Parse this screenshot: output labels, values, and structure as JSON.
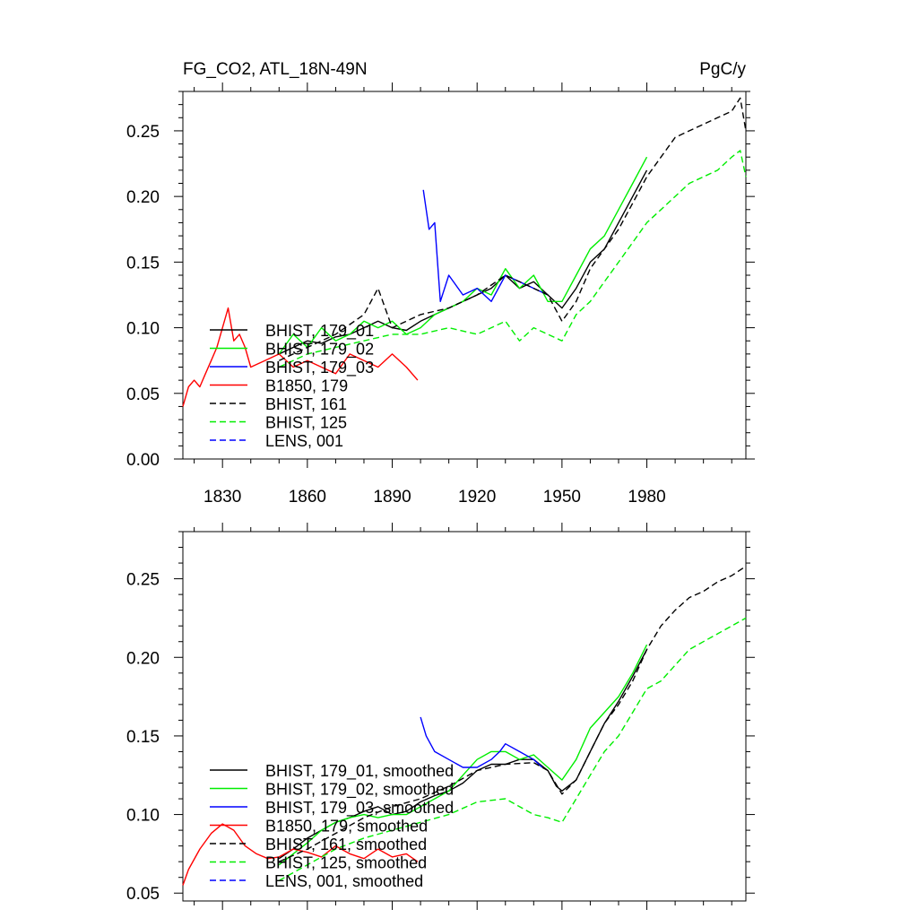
{
  "chart_data": [
    {
      "type": "line",
      "title": "FG_CO2, ATL_18N-49N",
      "units_label": "PgC/y",
      "xlabel": "",
      "ylabel": "",
      "xlim": [
        1816,
        2015
      ],
      "ylim": [
        0.0,
        0.28
      ],
      "xticks": [
        1830,
        1860,
        1890,
        1920,
        1950,
        1980
      ],
      "xtick_labels": [
        "1830",
        "1860",
        "1890",
        "1920",
        "1950",
        "1980"
      ],
      "yticks": [
        0.0,
        0.05,
        0.1,
        0.15,
        0.2,
        0.25
      ],
      "ytick_labels": [
        "0.00",
        "0.05",
        "0.10",
        "0.15",
        "0.20",
        "0.25"
      ],
      "legend_position": "bottom-left",
      "series": [
        {
          "name": "BHIST, 179_01",
          "color": "#000000",
          "dash": "solid",
          "x": [
            1850,
            1855,
            1860,
            1865,
            1870,
            1875,
            1880,
            1885,
            1890,
            1895,
            1900,
            1905,
            1910,
            1915,
            1920,
            1925,
            1930,
            1935,
            1940,
            1945,
            1950,
            1955,
            1960,
            1965,
            1970,
            1975,
            1980
          ],
          "y": [
            0.08,
            0.085,
            0.09,
            0.088,
            0.093,
            0.095,
            0.1,
            0.105,
            0.1,
            0.098,
            0.105,
            0.11,
            0.115,
            0.12,
            0.125,
            0.13,
            0.14,
            0.13,
            0.135,
            0.125,
            0.115,
            0.13,
            0.15,
            0.16,
            0.18,
            0.2,
            0.22
          ]
        },
        {
          "name": "BHIST, 179_02",
          "color": "#00ee00",
          "dash": "solid",
          "x": [
            1850,
            1855,
            1860,
            1865,
            1870,
            1875,
            1880,
            1885,
            1890,
            1895,
            1900,
            1905,
            1910,
            1915,
            1920,
            1925,
            1930,
            1935,
            1940,
            1945,
            1950,
            1955,
            1960,
            1965,
            1970,
            1975,
            1980
          ],
          "y": [
            0.08,
            0.095,
            0.085,
            0.1,
            0.09,
            0.095,
            0.105,
            0.1,
            0.105,
            0.095,
            0.1,
            0.11,
            0.115,
            0.12,
            0.13,
            0.125,
            0.145,
            0.13,
            0.14,
            0.12,
            0.12,
            0.14,
            0.16,
            0.17,
            0.19,
            0.21,
            0.23
          ]
        },
        {
          "name": "BHIST, 179_03",
          "color": "#0000ff",
          "dash": "solid",
          "x": [
            1901,
            1903,
            1905,
            1907,
            1910,
            1915,
            1920,
            1925,
            1930,
            1935,
            1940,
            1945
          ],
          "y": [
            0.205,
            0.175,
            0.18,
            0.12,
            0.14,
            0.125,
            0.13,
            0.12,
            0.14,
            0.135,
            0.13,
            0.125
          ]
        },
        {
          "name": "B1850, 179",
          "color": "#ff0000",
          "dash": "solid",
          "x": [
            1816,
            1818,
            1820,
            1822,
            1824,
            1826,
            1828,
            1830,
            1832,
            1834,
            1836,
            1838,
            1840,
            1845,
            1850,
            1855,
            1860,
            1865,
            1870,
            1875,
            1880,
            1885,
            1890,
            1895,
            1899
          ],
          "y": [
            0.04,
            0.055,
            0.06,
            0.055,
            0.065,
            0.075,
            0.085,
            0.1,
            0.115,
            0.09,
            0.095,
            0.085,
            0.07,
            0.075,
            0.08,
            0.07,
            0.075,
            0.07,
            0.065,
            0.08,
            0.075,
            0.07,
            0.08,
            0.07,
            0.06
          ]
        },
        {
          "name": "BHIST, 161",
          "color": "#000000",
          "dash": "dashed",
          "x": [
            1850,
            1860,
            1870,
            1880,
            1885,
            1890,
            1900,
            1910,
            1920,
            1930,
            1940,
            1945,
            1950,
            1955,
            1960,
            1965,
            1970,
            1975,
            1980,
            1985,
            1990,
            1995,
            2000,
            2005,
            2010,
            2013,
            2015
          ],
          "y": [
            0.075,
            0.085,
            0.095,
            0.11,
            0.13,
            0.1,
            0.11,
            0.115,
            0.125,
            0.14,
            0.13,
            0.125,
            0.105,
            0.12,
            0.145,
            0.16,
            0.175,
            0.195,
            0.215,
            0.23,
            0.245,
            0.25,
            0.255,
            0.26,
            0.265,
            0.275,
            0.25
          ]
        },
        {
          "name": "BHIST, 125",
          "color": "#00ee00",
          "dash": "dashed",
          "x": [
            1850,
            1860,
            1870,
            1880,
            1890,
            1900,
            1910,
            1920,
            1925,
            1930,
            1935,
            1940,
            1945,
            1950,
            1955,
            1960,
            1965,
            1970,
            1975,
            1980,
            1985,
            1990,
            1995,
            2000,
            2005,
            2010,
            2013,
            2015
          ],
          "y": [
            0.07,
            0.08,
            0.085,
            0.09,
            0.095,
            0.095,
            0.1,
            0.095,
            0.1,
            0.105,
            0.09,
            0.1,
            0.095,
            0.09,
            0.11,
            0.12,
            0.135,
            0.15,
            0.165,
            0.18,
            0.19,
            0.2,
            0.21,
            0.215,
            0.22,
            0.23,
            0.235,
            0.215
          ]
        },
        {
          "name": "LENS, 001",
          "color": "#0000ff",
          "dash": "dashed",
          "x": [],
          "y": []
        }
      ]
    },
    {
      "type": "line",
      "title": "",
      "xlabel": "",
      "ylabel": "",
      "xlim": [
        1816,
        2015
      ],
      "ylim": [
        0.045,
        0.28
      ],
      "xticks": [
        1830,
        1860,
        1890,
        1920,
        1950,
        1980
      ],
      "yticks": [
        0.05,
        0.1,
        0.15,
        0.2,
        0.25
      ],
      "ytick_labels": [
        "0.05",
        "0.10",
        "0.15",
        "0.20",
        "0.25"
      ],
      "legend_position": "bottom-left",
      "series": [
        {
          "name": "BHIST, 179_01, smoothed",
          "color": "#000000",
          "dash": "solid",
          "x": [
            1850,
            1855,
            1860,
            1865,
            1870,
            1875,
            1880,
            1885,
            1890,
            1895,
            1900,
            1905,
            1910,
            1915,
            1920,
            1925,
            1930,
            1935,
            1940,
            1945,
            1948,
            1950,
            1955,
            1960,
            1965,
            1970,
            1975,
            1980
          ],
          "y": [
            0.072,
            0.078,
            0.085,
            0.09,
            0.095,
            0.098,
            0.102,
            0.105,
            0.1,
            0.102,
            0.108,
            0.112,
            0.115,
            0.12,
            0.128,
            0.132,
            0.132,
            0.135,
            0.135,
            0.128,
            0.118,
            0.115,
            0.122,
            0.14,
            0.158,
            0.172,
            0.188,
            0.205
          ]
        },
        {
          "name": "BHIST, 179_02, smoothed",
          "color": "#00ee00",
          "dash": "solid",
          "x": [
            1850,
            1855,
            1860,
            1865,
            1870,
            1875,
            1880,
            1885,
            1890,
            1895,
            1900,
            1905,
            1910,
            1915,
            1920,
            1925,
            1930,
            1935,
            1940,
            1945,
            1950,
            1955,
            1960,
            1965,
            1970,
            1975,
            1980
          ],
          "y": [
            0.068,
            0.075,
            0.082,
            0.09,
            0.095,
            0.098,
            0.1,
            0.098,
            0.1,
            0.1,
            0.105,
            0.11,
            0.115,
            0.125,
            0.135,
            0.14,
            0.14,
            0.135,
            0.138,
            0.13,
            0.122,
            0.135,
            0.155,
            0.165,
            0.175,
            0.19,
            0.208
          ]
        },
        {
          "name": "BHIST, 179_03, smoothed",
          "color": "#0000ff",
          "dash": "solid",
          "x": [
            1900,
            1902,
            1905,
            1910,
            1915,
            1920,
            1925,
            1928,
            1930,
            1935,
            1940,
            1943
          ],
          "y": [
            0.162,
            0.15,
            0.14,
            0.135,
            0.13,
            0.13,
            0.135,
            0.14,
            0.145,
            0.14,
            0.135,
            0.13
          ]
        },
        {
          "name": "B1850, 179, smoothed",
          "color": "#ff0000",
          "dash": "solid",
          "x": [
            1816,
            1818,
            1822,
            1826,
            1830,
            1834,
            1838,
            1842,
            1846,
            1850,
            1855,
            1860,
            1865,
            1870,
            1875,
            1880,
            1885,
            1890,
            1895,
            1899
          ],
          "y": [
            0.055,
            0.065,
            0.078,
            0.088,
            0.094,
            0.09,
            0.08,
            0.075,
            0.072,
            0.073,
            0.078,
            0.076,
            0.073,
            0.08,
            0.075,
            0.072,
            0.078,
            0.073,
            0.075,
            0.07
          ]
        },
        {
          "name": "BHIST, 161, smoothed",
          "color": "#000000",
          "dash": "dashed",
          "x": [
            1850,
            1860,
            1870,
            1880,
            1890,
            1900,
            1910,
            1920,
            1930,
            1940,
            1945,
            1950,
            1955,
            1960,
            1965,
            1970,
            1975,
            1980,
            1985,
            1990,
            1995,
            2000,
            2005,
            2010,
            2015
          ],
          "y": [
            0.07,
            0.078,
            0.088,
            0.098,
            0.105,
            0.11,
            0.118,
            0.128,
            0.132,
            0.133,
            0.128,
            0.113,
            0.122,
            0.14,
            0.158,
            0.17,
            0.185,
            0.205,
            0.22,
            0.23,
            0.238,
            0.242,
            0.248,
            0.252,
            0.258
          ]
        },
        {
          "name": "BHIST, 125, smoothed",
          "color": "#00ee00",
          "dash": "dashed",
          "x": [
            1850,
            1860,
            1870,
            1880,
            1890,
            1900,
            1910,
            1920,
            1930,
            1940,
            1945,
            1950,
            1955,
            1960,
            1965,
            1970,
            1975,
            1980,
            1985,
            1990,
            1995,
            2000,
            2005,
            2010,
            2015
          ],
          "y": [
            0.058,
            0.068,
            0.078,
            0.085,
            0.09,
            0.095,
            0.1,
            0.108,
            0.11,
            0.1,
            0.098,
            0.095,
            0.11,
            0.125,
            0.14,
            0.15,
            0.165,
            0.18,
            0.185,
            0.195,
            0.205,
            0.21,
            0.215,
            0.22,
            0.225
          ]
        },
        {
          "name": "LENS, 001, smoothed",
          "color": "#0000ff",
          "dash": "dashed",
          "x": [],
          "y": []
        }
      ]
    }
  ]
}
